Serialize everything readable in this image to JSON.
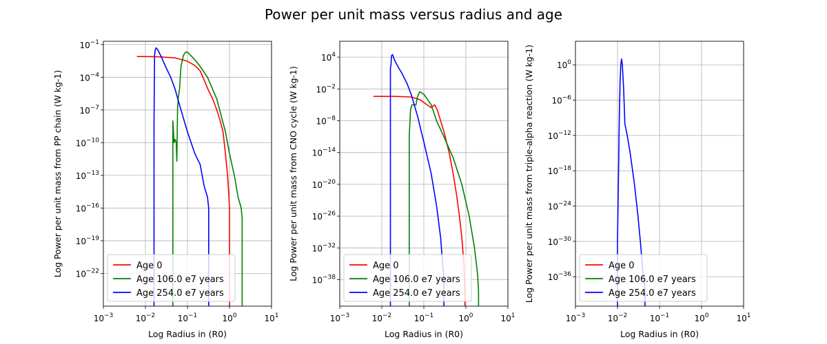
{
  "suptitle": "Power per unit mass versus radius and age",
  "colors": {
    "age0": "#ff0000",
    "age106": "#008000",
    "age254": "#0000ff",
    "grid": "#b0b0b0"
  },
  "chart_data": [
    {
      "type": "line",
      "xscale": "log",
      "yscale": "log",
      "xlabel": "Log Radius in (R0)",
      "ylabel": "Log Power per unit mass from PP chain (W kg-1)",
      "xlim": [
        0.001,
        10
      ],
      "ylim": [
        1e-25,
        0.2
      ],
      "x_ticks": [
        0.001,
        0.01,
        0.1,
        1,
        10
      ],
      "x_tick_labels": [
        [
          "10",
          "−3"
        ],
        [
          "10",
          "−2"
        ],
        [
          "10",
          "−1"
        ],
        [
          "10",
          "0"
        ],
        [
          "10",
          "1"
        ]
      ],
      "y_ticks": [
        1e-22,
        1e-19,
        1e-16,
        1e-13,
        1e-10,
        1e-07,
        0.0001,
        0.1
      ],
      "y_tick_labels": [
        [
          "10",
          "−22"
        ],
        [
          "10",
          "−19"
        ],
        [
          "10",
          "−16"
        ],
        [
          "10",
          "−13"
        ],
        [
          "10",
          "−10"
        ],
        [
          "10",
          "−7"
        ],
        [
          "10",
          "−4"
        ],
        [
          "10",
          "−1"
        ]
      ],
      "grid": true,
      "legend_position": "lower left",
      "series": [
        {
          "name": "Age 0",
          "color": "#ff0000",
          "x": [
            0.0063,
            0.01,
            0.02,
            0.05,
            0.1,
            0.15,
            0.2,
            0.3,
            0.4,
            0.5,
            0.6,
            0.7,
            0.8,
            0.9,
            0.97,
            1.0,
            1.0
          ],
          "y": [
            0.0079,
            0.0079,
            0.0075,
            0.006,
            0.003,
            0.0012,
            0.0004,
            1e-05,
            1e-06,
            1e-07,
            1e-08,
            1e-09,
            1e-11,
            1e-13,
            1e-15,
            1e-16,
            1e-25
          ]
        },
        {
          "name": "Age 106.0 e7 years",
          "color": "#008000",
          "x": [
            0.045,
            0.045,
            0.048,
            0.051,
            0.054,
            0.056,
            0.058,
            0.06,
            0.065,
            0.07,
            0.08,
            0.09,
            0.1,
            0.12,
            0.15,
            0.2,
            0.3,
            0.5,
            0.8,
            1.0,
            1.3,
            1.6,
            1.9,
            2.0,
            2.0
          ],
          "y": [
            1e-25,
            1e-08,
            1e-10,
            2e-10,
            1e-10,
            2e-12,
            1e-07,
            1e-06,
            1e-05,
            0.001,
            0.01,
            0.02,
            0.02,
            0.01,
            0.004,
            0.001,
            0.0001,
            1e-06,
            1e-09,
            1e-11,
            1e-13,
            1e-15,
            1e-16,
            1e-17,
            1e-25
          ]
        },
        {
          "name": "Age 254.0 e7 years",
          "color": "#0000ff",
          "x": [
            0.016,
            0.016,
            0.0165,
            0.017,
            0.018,
            0.02,
            0.025,
            0.03,
            0.04,
            0.05,
            0.07,
            0.1,
            0.15,
            0.2,
            0.25,
            0.3,
            0.32,
            0.32
          ],
          "y": [
            1e-25,
            1e-08,
            0.01,
            0.03,
            0.05,
            0.03,
            0.005,
            0.001,
            0.0001,
            1e-05,
            1e-07,
            1e-09,
            1e-11,
            1e-12,
            1e-14,
            1e-15,
            1e-16,
            1e-25
          ]
        }
      ]
    },
    {
      "type": "line",
      "xscale": "log",
      "yscale": "log",
      "xlabel": "Log Radius in (R0)",
      "ylabel": "Log Power per unit mass from CNO cycle (W kg-1)",
      "xlim": [
        0.001,
        10
      ],
      "ylim": [
        1e-43,
        10000000.0
      ],
      "x_ticks": [
        0.001,
        0.01,
        0.1,
        1,
        10
      ],
      "x_tick_labels": [
        [
          "10",
          "−3"
        ],
        [
          "10",
          "−2"
        ],
        [
          "10",
          "−1"
        ],
        [
          "10",
          "0"
        ],
        [
          "10",
          "1"
        ]
      ],
      "y_ticks": [
        1e-38,
        1e-32,
        1e-26,
        1e-20,
        1e-14,
        1e-08,
        0.01,
        10000
      ],
      "y_tick_labels": [
        [
          "10",
          "−38"
        ],
        [
          "10",
          "−32"
        ],
        [
          "10",
          "−26"
        ],
        [
          "10",
          "−20"
        ],
        [
          "10",
          "−14"
        ],
        [
          "10",
          "−8"
        ],
        [
          "10",
          "−2"
        ],
        [
          "10",
          "4"
        ]
      ],
      "grid": true,
      "legend_position": "lower left",
      "series": [
        {
          "name": "Age 0",
          "color": "#ff0000",
          "x": [
            0.0063,
            0.02,
            0.05,
            0.08,
            0.12,
            0.15,
            0.18,
            0.21,
            0.25,
            0.3,
            0.4,
            0.5,
            0.6,
            0.7,
            0.8,
            0.9,
            0.95,
            0.95
          ],
          "y": [
            0.0004,
            0.0004,
            0.0003,
            0.0001,
            1e-05,
            3e-06,
            1e-05,
            1e-06,
            1e-08,
            1e-10,
            1e-14,
            1e-18,
            1e-22,
            1e-26,
            1e-30,
            1e-35,
            1e-40,
            1e-43
          ]
        },
        {
          "name": "Age 106.0 e7 years",
          "color": "#008000",
          "x": [
            0.045,
            0.045,
            0.048,
            0.052,
            0.055,
            0.06,
            0.065,
            0.07,
            0.08,
            0.1,
            0.15,
            0.2,
            0.3,
            0.5,
            0.8,
            1.2,
            1.6,
            1.9,
            2.0,
            2.0
          ],
          "y": [
            1e-43,
            1e-11,
            1e-06,
            1e-05,
            1e-05,
            1e-05,
            1e-05,
            0.0003,
            0.003,
            0.001,
            1e-05,
            1e-08,
            1e-11,
            1e-15,
            1e-20,
            1e-26,
            1e-32,
            1e-37,
            1e-40,
            1e-43
          ]
        },
        {
          "name": "Age 254.0 e7 years",
          "color": "#0000ff",
          "x": [
            0.016,
            0.016,
            0.0165,
            0.017,
            0.018,
            0.02,
            0.025,
            0.03,
            0.04,
            0.05,
            0.07,
            0.1,
            0.15,
            0.2,
            0.25,
            0.3,
            0.3
          ],
          "y": [
            1e-43,
            100,
            300,
            20000,
            30000,
            3000,
            100,
            10,
            0.1,
            0.001,
            1e-07,
            1e-12,
            1e-18,
            1e-24,
            1e-30,
            1e-38,
            1e-43
          ]
        }
      ]
    },
    {
      "type": "line",
      "xscale": "log",
      "yscale": "log",
      "xlabel": "Log Radius in (R0)",
      "ylabel": "Log Power per unit mass from triple-alpha reaction (W kg-1)",
      "xlim": [
        0.001,
        10
      ],
      "ylim": [
        1e-41,
        10000
      ],
      "x_ticks": [
        0.001,
        0.01,
        0.1,
        1,
        10
      ],
      "x_tick_labels": [
        [
          "10",
          "−3"
        ],
        [
          "10",
          "−2"
        ],
        [
          "10",
          "−1"
        ],
        [
          "10",
          "0"
        ],
        [
          "10",
          "1"
        ]
      ],
      "y_ticks": [
        1e-36,
        1e-30,
        1e-24,
        1e-18,
        1e-12,
        1e-06,
        1
      ],
      "y_tick_labels": [
        [
          "10",
          "−36"
        ],
        [
          "10",
          "−30"
        ],
        [
          "10",
          "−24"
        ],
        [
          "10",
          "−18"
        ],
        [
          "10",
          "−12"
        ],
        [
          "10",
          "−6"
        ],
        [
          "10",
          "0"
        ]
      ],
      "grid": true,
      "legend_position": "lower left",
      "series": [
        {
          "name": "Age 0",
          "color": "#ff0000",
          "x": [],
          "y": []
        },
        {
          "name": "Age 106.0 e7 years",
          "color": "#008000",
          "x": [],
          "y": []
        },
        {
          "name": "Age 254.0 e7 years",
          "color": "#0000ff",
          "x": [
            0.01,
            0.01,
            0.0105,
            0.011,
            0.0115,
            0.012,
            0.0125,
            0.013,
            0.014,
            0.015,
            0.017,
            0.02,
            0.025,
            0.03,
            0.035,
            0.04,
            0.045,
            0.045
          ],
          "y": [
            1e-41,
            1e-30,
            1e-20,
            1e-10,
            0.001,
            1,
            10,
            1,
            0.0001,
            1e-10,
            1e-12,
            1e-15,
            1e-20,
            1e-25,
            1e-30,
            1e-35,
            1e-38,
            1e-41
          ]
        }
      ]
    }
  ]
}
